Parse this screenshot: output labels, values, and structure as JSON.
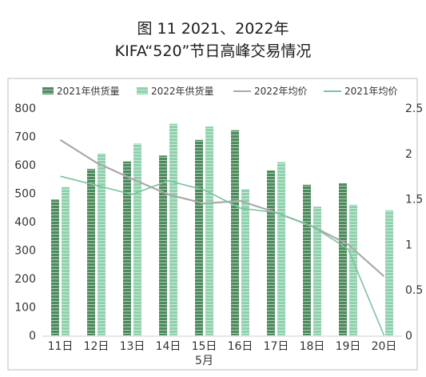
{
  "title_line1": "图 11  2021、2022年",
  "title_line2": "KIFA“520”节日高峰交易情况",
  "chart_data": {
    "type": "bar",
    "categories": [
      "11日",
      "12日",
      "13日",
      "14日",
      "15日",
      "16日",
      "17日",
      "18日",
      "19日",
      "20日"
    ],
    "xlabel_sub": "5月",
    "series": [
      {
        "name": "2021年供货量",
        "kind": "bar",
        "axis": "left",
        "color": "#4d8a5c",
        "values": [
          478,
          586,
          612,
          633,
          688,
          722,
          580,
          530,
          535,
          null
        ]
      },
      {
        "name": "2022年供货量",
        "kind": "bar",
        "axis": "left",
        "color": "#8fd1ad",
        "values": [
          522,
          640,
          675,
          745,
          735,
          515,
          610,
          453,
          460,
          440
        ]
      },
      {
        "name": "2022年均价",
        "kind": "line",
        "axis": "right",
        "color": "#aaaaaa",
        "values": [
          2.15,
          1.9,
          1.72,
          1.55,
          1.45,
          1.48,
          1.35,
          1.2,
          1.0,
          0.65
        ]
      },
      {
        "name": "2021年均价",
        "kind": "line",
        "axis": "right",
        "color": "#7cc49e",
        "values": [
          1.75,
          1.65,
          1.55,
          1.7,
          1.6,
          1.4,
          1.35,
          1.2,
          0.95,
          0.0
        ]
      }
    ],
    "ylim_left": [
      0,
      800
    ],
    "yticks_left": [
      0,
      100,
      200,
      300,
      400,
      500,
      600,
      700,
      800
    ],
    "ylim_right": [
      0,
      2.5
    ],
    "yticks_right": [
      "0",
      "0.5",
      "1",
      "1.5",
      "2",
      "2.5"
    ],
    "legend": "top",
    "grid": false
  }
}
